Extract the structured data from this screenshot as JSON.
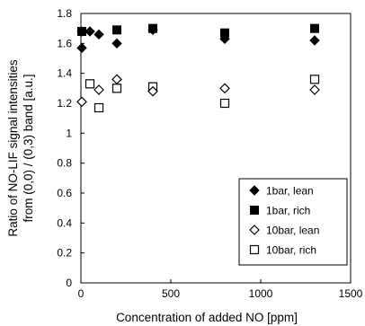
{
  "chart_data": {
    "type": "scatter",
    "xlabel": "Concentration of added NO [ppm]",
    "ylabel_lines": [
      "Ratio of NO-LIF signal intensities",
      "from (0,0) / (0,3) band [a.u.]"
    ],
    "xlim": [
      0,
      1500
    ],
    "ylim": [
      0,
      1.8
    ],
    "x_ticks": [
      "0",
      "500",
      "1000",
      "1500"
    ],
    "y_ticks": [
      "0",
      "0.2",
      "0.4",
      "0.6",
      "0.8",
      "1",
      "1.2",
      "1.4",
      "1.6",
      "1.8"
    ],
    "grid": false,
    "legend_position": "bottom-right",
    "series": [
      {
        "name": "1bar, lean",
        "marker": "filled-diamond",
        "points": [
          [
            0,
            1.57
          ],
          [
            5,
            1.68
          ],
          [
            50,
            1.68
          ],
          [
            100,
            1.66
          ],
          [
            200,
            1.6
          ],
          [
            400,
            1.69
          ],
          [
            800,
            1.63
          ],
          [
            1300,
            1.62
          ]
        ]
      },
      {
        "name": "1bar, rich",
        "marker": "filled-square",
        "points": [
          [
            5,
            1.68
          ],
          [
            200,
            1.69
          ],
          [
            400,
            1.7
          ],
          [
            800,
            1.67
          ],
          [
            1300,
            1.7
          ]
        ]
      },
      {
        "name": "10bar, lean",
        "marker": "open-diamond",
        "points": [
          [
            0,
            1.21
          ],
          [
            100,
            1.29
          ],
          [
            200,
            1.36
          ],
          [
            400,
            1.28
          ],
          [
            800,
            1.3
          ],
          [
            1300,
            1.29
          ]
        ]
      },
      {
        "name": "10bar, rich",
        "marker": "open-square",
        "points": [
          [
            50,
            1.33
          ],
          [
            100,
            1.17
          ],
          [
            200,
            1.3
          ],
          [
            400,
            1.31
          ],
          [
            800,
            1.2
          ],
          [
            1300,
            1.36
          ]
        ]
      }
    ]
  }
}
